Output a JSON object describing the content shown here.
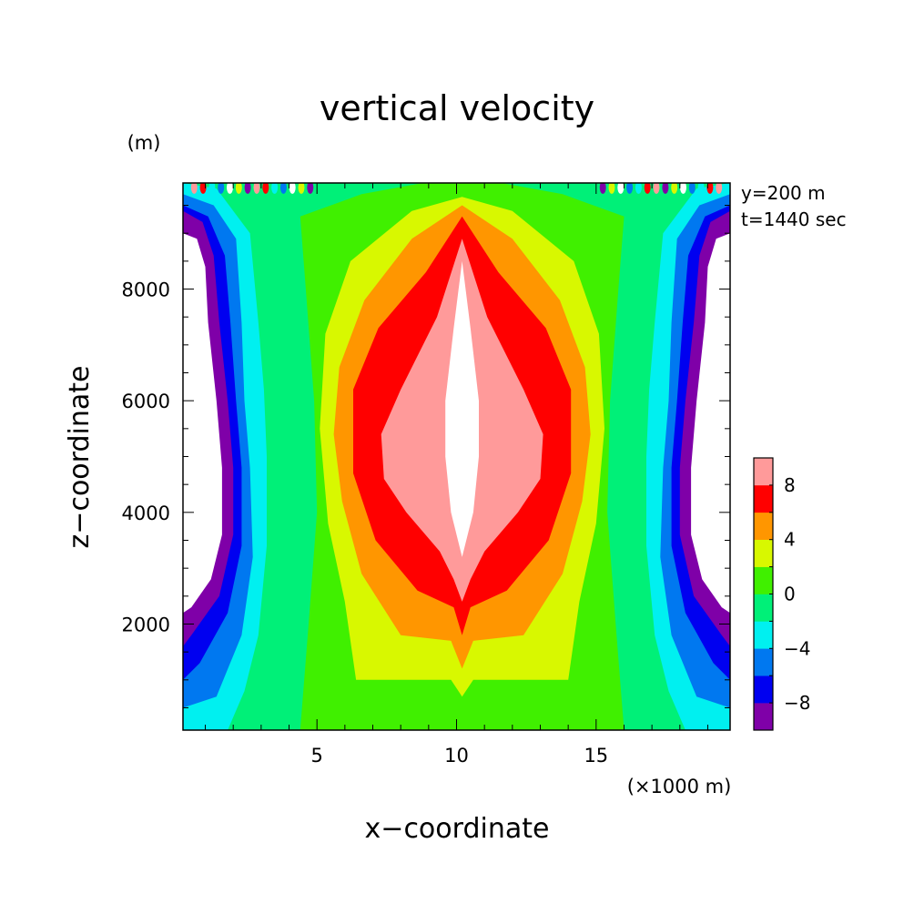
{
  "chart_data": {
    "type": "contour",
    "title": "vertical velocity",
    "xlabel": "x−coordinate",
    "ylabel": "z−coordinate",
    "x_units": "(×1000 m)",
    "y_units": "(m)",
    "annotations": [
      "y=200 m",
      "t=1440 sec"
    ],
    "xlim": [
      0.2,
      19.8
    ],
    "ylim": [
      100,
      9900
    ],
    "x_ticks": [
      5,
      10,
      15
    ],
    "x_tick_labels": [
      "5",
      "10",
      "15"
    ],
    "y_ticks": [
      2000,
      4000,
      6000,
      8000
    ],
    "y_tick_labels": [
      "2000",
      "4000",
      "6000",
      "8000"
    ],
    "levels": [
      -10,
      -8,
      -6,
      -4,
      -2,
      0,
      2,
      4,
      6,
      8,
      10
    ],
    "level_colors": [
      "#7f00a8",
      "#0000f0",
      "#0078f0",
      "#00f0f0",
      "#00f078",
      "#40f000",
      "#d8f800",
      "#ff9600",
      "#ff0000",
      "#ff9a9a"
    ],
    "out_of_range_color": "#ffffff",
    "colorbar_tick_values": [
      8,
      4,
      0,
      -4,
      -8
    ],
    "colorbar_tick_labels": [
      "8",
      "4",
      "0",
      "−4",
      "−8"
    ],
    "legend_position": "right",
    "grid": false,
    "regions": [
      {
        "level_range": [
          -2,
          0
        ],
        "description": "full background domain"
      },
      {
        "level_range": [
          0,
          2
        ],
        "x_extent": [
          4.2,
          16.0
        ],
        "z_extent": [
          100,
          9900
        ]
      },
      {
        "level_range": [
          2,
          4
        ],
        "x_extent": [
          5.0,
          15.6
        ],
        "z_extent": [
          1000,
          9600
        ]
      },
      {
        "level_range": [
          4,
          6
        ],
        "x_extent": [
          5.8,
          15.0
        ],
        "z_extent": [
          1600,
          9500
        ]
      },
      {
        "level_range": [
          6,
          8
        ],
        "x_extent": [
          6.6,
          14.2
        ],
        "z_extent": [
          1800,
          9300
        ]
      },
      {
        "level_range": [
          8,
          10
        ],
        "x_extent": [
          7.5,
          13.2
        ],
        "z_extent": [
          2400,
          8900
        ]
      },
      {
        "level_range": [
          10,
          null
        ],
        "x_extent": [
          9.6,
          10.6
        ],
        "z_extent": [
          3200,
          8500
        ]
      },
      {
        "level_range": [
          -4,
          -2
        ],
        "x_extent": [
          0.2,
          3.0
        ],
        "z_extent": [
          100,
          9800
        ]
      },
      {
        "level_range": [
          -6,
          -4
        ],
        "x_extent": [
          0.2,
          2.5
        ],
        "z_extent": [
          300,
          9600
        ]
      },
      {
        "level_range": [
          -8,
          -6
        ],
        "x_extent": [
          0.2,
          2.2
        ],
        "z_extent": [
          600,
          9200
        ]
      },
      {
        "level_range": [
          -10,
          -8
        ],
        "x_extent": [
          0.2,
          1.9
        ],
        "z_extent": [
          1200,
          9000
        ]
      },
      {
        "level_range": [
          null,
          -10
        ],
        "x_extent": [
          0.2,
          1.6
        ],
        "z_extent": [
          1800,
          9400
        ]
      }
    ]
  }
}
